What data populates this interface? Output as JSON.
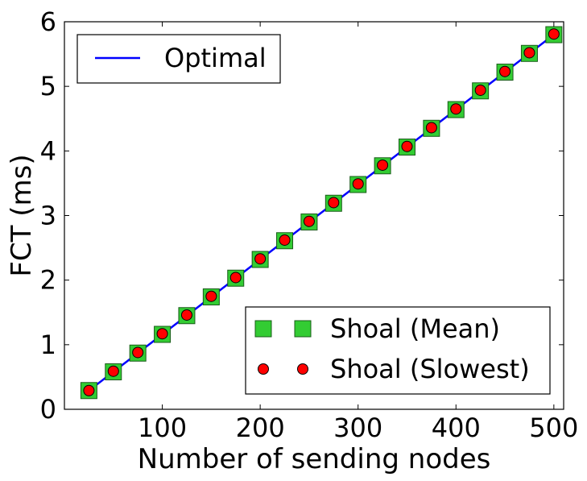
{
  "chart_data": {
    "type": "line",
    "xlabel": "Number of sending nodes",
    "ylabel": "FCT (ms)",
    "xlim": [
      0,
      510
    ],
    "ylim": [
      0,
      6
    ],
    "xticks": [
      100,
      200,
      300,
      400,
      500
    ],
    "yticks": [
      0,
      1,
      2,
      3,
      4,
      5,
      6
    ],
    "grid": false,
    "legends": [
      {
        "placement": "upper-left",
        "entries": [
          "Optimal"
        ]
      },
      {
        "placement": "lower-right",
        "entries": [
          "Shoal (Mean)",
          "Shoal (Slowest)"
        ]
      }
    ],
    "x": [
      25,
      50,
      75,
      100,
      125,
      150,
      175,
      200,
      225,
      250,
      275,
      300,
      325,
      350,
      375,
      400,
      425,
      450,
      475,
      500
    ],
    "series": [
      {
        "name": "Optimal",
        "kind": "line",
        "color": "#0000ff",
        "values": [
          0.29,
          0.58,
          0.87,
          1.16,
          1.45,
          1.74,
          2.03,
          2.32,
          2.61,
          2.9,
          3.19,
          3.48,
          3.77,
          4.06,
          4.35,
          4.64,
          4.93,
          5.22,
          5.51,
          5.8
        ]
      },
      {
        "name": "Shoal (Mean)",
        "kind": "square-marker",
        "color": "#33cc33",
        "values": [
          0.29,
          0.58,
          0.87,
          1.16,
          1.45,
          1.74,
          2.03,
          2.32,
          2.61,
          2.9,
          3.19,
          3.48,
          3.77,
          4.06,
          4.35,
          4.64,
          4.93,
          5.22,
          5.51,
          5.8
        ]
      },
      {
        "name": "Shoal (Slowest)",
        "kind": "circle-marker",
        "color": "#ff0000",
        "values": [
          0.29,
          0.59,
          0.88,
          1.17,
          1.46,
          1.75,
          2.04,
          2.33,
          2.62,
          2.91,
          3.2,
          3.49,
          3.78,
          4.07,
          4.36,
          4.65,
          4.94,
          5.23,
          5.52,
          5.81
        ]
      }
    ]
  }
}
